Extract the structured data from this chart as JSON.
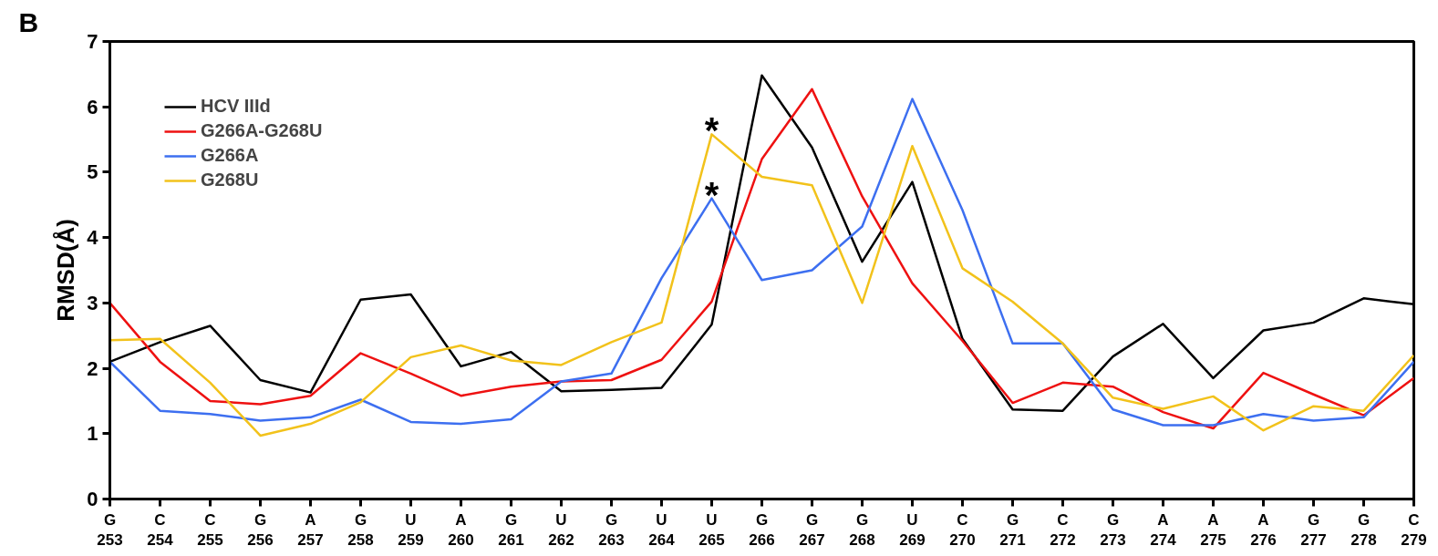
{
  "chart_data": {
    "type": "line",
    "title": "B",
    "ylabel": "RMSD(Å)",
    "categories": [
      "G\n253",
      "C\n254",
      "C\n255",
      "G\n256",
      "A\n257",
      "G\n258",
      "U\n259",
      "A\n260",
      "G\n261",
      "U\n262",
      "G\n263",
      "U\n264",
      "U\n265",
      "G\n266",
      "G\n267",
      "G\n268",
      "U\n269",
      "C\n270",
      "G\n271",
      "C\n272",
      "G\n273",
      "A\n274",
      "A\n275",
      "A\n276",
      "G\n277",
      "G\n278",
      "C\n279"
    ],
    "ylim": [
      0,
      7
    ],
    "yticks": [
      0,
      1,
      2,
      3,
      4,
      5,
      6,
      7
    ],
    "grid": false,
    "legend": "top left",
    "line_style": "solid",
    "marker": "none",
    "series": [
      {
        "name": "HCV IIId",
        "color": "#000000",
        "values": [
          2.1,
          2.4,
          2.65,
          1.82,
          1.63,
          3.05,
          3.13,
          2.03,
          2.25,
          1.65,
          1.67,
          1.7,
          2.67,
          6.48,
          5.38,
          3.63,
          4.85,
          2.45,
          1.37,
          1.35,
          2.18,
          2.68,
          1.85,
          2.58,
          2.7,
          3.07,
          2.98
        ]
      },
      {
        "name": "G266A-G268U",
        "color": "#ee1111",
        "values": [
          3.0,
          2.1,
          1.5,
          1.45,
          1.58,
          2.23,
          1.92,
          1.58,
          1.72,
          1.8,
          1.82,
          2.13,
          3.02,
          5.2,
          6.27,
          4.63,
          3.3,
          2.42,
          1.47,
          1.78,
          1.72,
          1.33,
          1.08,
          1.93,
          1.6,
          1.28,
          1.85
        ]
      },
      {
        "name": "G266A",
        "color": "#3d6ff0",
        "values": [
          2.1,
          1.35,
          1.3,
          1.2,
          1.25,
          1.52,
          1.18,
          1.15,
          1.22,
          1.8,
          1.92,
          3.38,
          4.6,
          3.35,
          3.5,
          4.17,
          6.12,
          4.42,
          2.38,
          2.38,
          1.37,
          1.13,
          1.13,
          1.3,
          1.2,
          1.25,
          2.1
        ]
      },
      {
        "name": "G268U",
        "color": "#f2c21b",
        "values": [
          2.43,
          2.45,
          1.78,
          0.97,
          1.15,
          1.48,
          2.17,
          2.35,
          2.12,
          2.05,
          2.4,
          2.7,
          5.58,
          4.93,
          4.8,
          3.0,
          5.4,
          3.53,
          3.02,
          2.38,
          1.55,
          1.38,
          1.57,
          1.05,
          1.42,
          1.35,
          2.2
        ]
      }
    ],
    "annotations": [
      {
        "text": "*",
        "x": "U\n265",
        "y": 5.58
      },
      {
        "text": "*",
        "x": "U\n265",
        "y": 4.6
      }
    ]
  }
}
